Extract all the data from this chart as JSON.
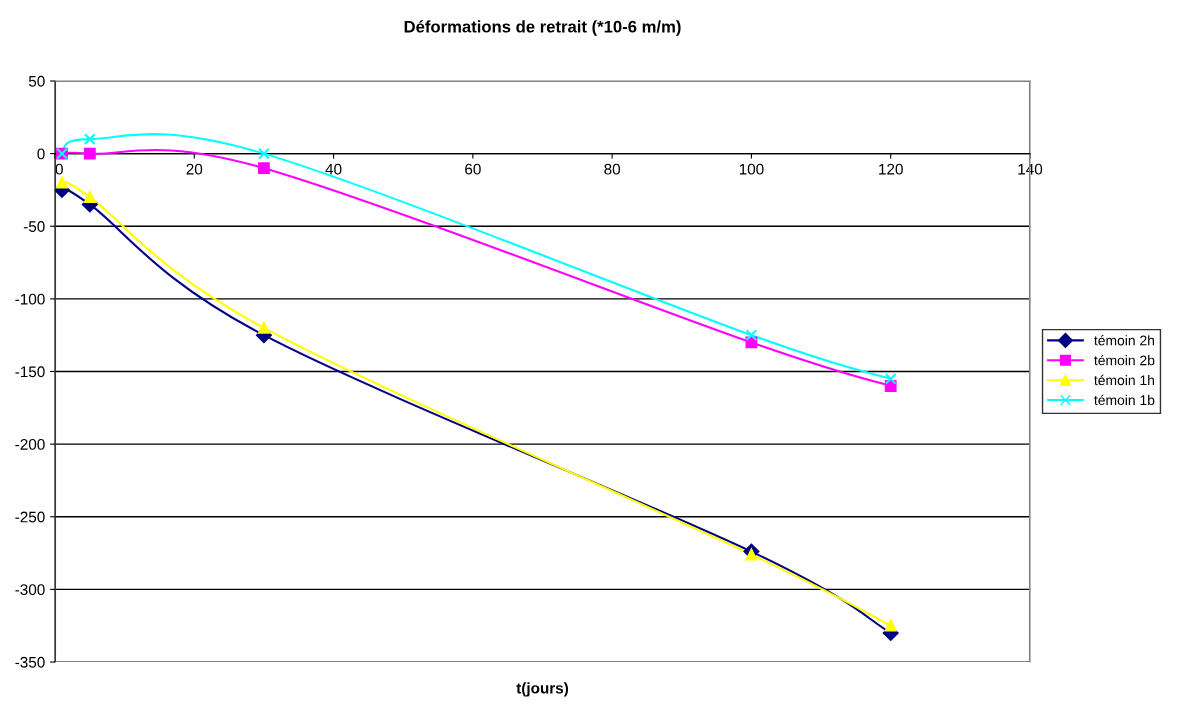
{
  "chart_data": {
    "type": "line",
    "title": "Déformations de retrait (*10-6 m/m)",
    "xlabel": "t(jours)",
    "x": [
      1,
      5,
      30,
      100,
      120
    ],
    "series": [
      {
        "name": "témoin 2h",
        "color": "#000080",
        "marker": "diamond",
        "values": [
          -25,
          -35,
          -125,
          -274,
          -330
        ]
      },
      {
        "name": "témoin 2b",
        "color": "#ff00ff",
        "marker": "square",
        "values": [
          0,
          0,
          -10,
          -130,
          -160
        ]
      },
      {
        "name": "témoin 1h",
        "color": "#ffff00",
        "marker": "triangle",
        "values": [
          -20,
          -30,
          -120,
          -276,
          -325
        ]
      },
      {
        "name": "témoin 1b",
        "color": "#00ffff",
        "marker": "cross",
        "values": [
          0,
          10,
          0,
          -125,
          -155
        ]
      }
    ],
    "xlim": [
      0,
      140
    ],
    "xticks": [
      0,
      20,
      40,
      60,
      80,
      100,
      120,
      140
    ],
    "ylim": [
      -350,
      50
    ],
    "yticks": [
      -350,
      -300,
      -250,
      -200,
      -150,
      -100,
      -50,
      0,
      50
    ],
    "grid": "y",
    "legend": "right",
    "line_style": "solid"
  }
}
